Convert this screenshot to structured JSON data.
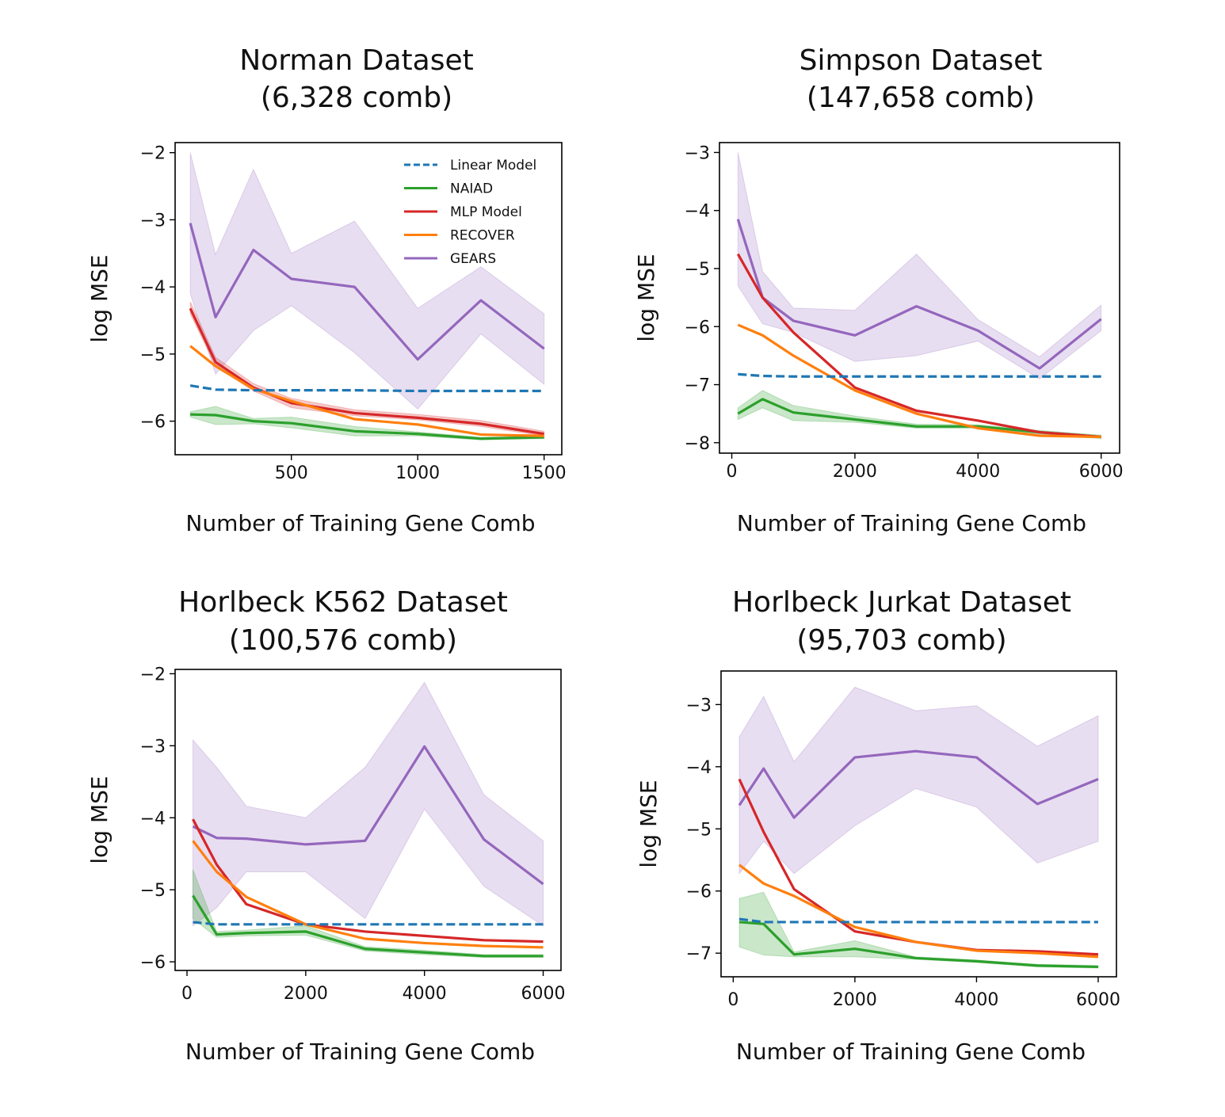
{
  "colors": {
    "linear": "#1f77b4",
    "naiad": "#2ca02c",
    "mlp": "#d62728",
    "recover": "#ff7f0e",
    "gears": "#9467bd"
  },
  "legend": [
    {
      "key": "linear",
      "label": "Linear Model",
      "dashed": true
    },
    {
      "key": "naiad",
      "label": "NAIAD",
      "dashed": false
    },
    {
      "key": "mlp",
      "label": "MLP Model",
      "dashed": false
    },
    {
      "key": "recover",
      "label": "RECOVER",
      "dashed": false
    },
    {
      "key": "gears",
      "label": "GEARS",
      "dashed": false
    }
  ],
  "chart_data": [
    {
      "type": "line",
      "title": [
        "Norman Dataset",
        "(6,328 comb)"
      ],
      "xlabel": "Number of Training Gene Comb",
      "ylabel": "log MSE",
      "xlim": [
        40,
        1570
      ],
      "ylim": [
        -6.5,
        -1.85
      ],
      "xticks": [
        500,
        1000,
        1500
      ],
      "yticks": [
        -6,
        -5,
        -4,
        -3,
        -2
      ],
      "legend": true,
      "x": [
        100,
        200,
        350,
        500,
        750,
        1000,
        1250,
        1500
      ],
      "series": [
        {
          "key": "linear",
          "values": [
            -5.47,
            -5.53,
            -5.54,
            -5.54,
            -5.54,
            -5.55,
            -5.55,
            -5.55
          ],
          "band": null
        },
        {
          "key": "gears",
          "values": [
            -3.05,
            -4.45,
            -3.45,
            -3.88,
            -4.0,
            -5.08,
            -4.2,
            -4.92
          ],
          "band": {
            "lower": [
              -4.1,
              -5.3,
              -4.65,
              -4.28,
              -4.98,
              -5.82,
              -4.7,
              -5.45
            ],
            "upper": [
              -2.0,
              -3.52,
              -2.25,
              -3.5,
              -3.02,
              -4.32,
              -3.7,
              -4.4
            ]
          }
        },
        {
          "key": "naiad",
          "values": [
            -5.9,
            -5.91,
            -6.0,
            -6.03,
            -6.15,
            -6.19,
            -6.26,
            -6.24
          ],
          "band": {
            "lower": [
              -5.94,
              -6.05,
              -6.04,
              -6.1,
              -6.22,
              -6.22,
              -6.28,
              -6.26
            ],
            "upper": [
              -5.86,
              -5.78,
              -5.96,
              -5.94,
              -6.08,
              -6.16,
              -6.24,
              -6.22
            ]
          }
        },
        {
          "key": "mlp",
          "values": [
            -4.32,
            -5.12,
            -5.5,
            -5.73,
            -5.88,
            -5.95,
            -6.04,
            -6.19
          ],
          "band": {
            "lower": [
              -4.4,
              -5.18,
              -5.55,
              -5.8,
              -5.92,
              -5.98,
              -6.08,
              -6.22
            ],
            "upper": [
              -4.22,
              -5.05,
              -5.44,
              -5.66,
              -5.83,
              -5.9,
              -5.99,
              -6.15
            ]
          }
        },
        {
          "key": "recover",
          "values": [
            -4.88,
            -5.18,
            -5.52,
            -5.7,
            -5.97,
            -6.05,
            -6.2,
            -6.22
          ],
          "band": null
        }
      ]
    },
    {
      "type": "line",
      "title": [
        "Simpson Dataset",
        "(147,658 comb)"
      ],
      "xlabel": "Number of Training Gene Comb",
      "ylabel": "log MSE",
      "xlim": [
        -200,
        6300
      ],
      "ylim": [
        -8.18,
        -2.83
      ],
      "xticks": [
        0,
        2000,
        4000,
        6000
      ],
      "yticks": [
        -8,
        -7,
        -6,
        -5,
        -4,
        -3
      ],
      "legend": false,
      "x": [
        100,
        500,
        1000,
        2000,
        3000,
        4000,
        5000,
        6000
      ],
      "series": [
        {
          "key": "linear",
          "values": [
            -6.82,
            -6.85,
            -6.86,
            -6.86,
            -6.86,
            -6.86,
            -6.86,
            -6.86
          ],
          "band": null
        },
        {
          "key": "gears",
          "values": [
            -4.15,
            -5.5,
            -5.9,
            -6.15,
            -5.65,
            -6.07,
            -6.72,
            -5.87
          ],
          "band": {
            "lower": [
              -5.3,
              -5.95,
              -6.1,
              -6.6,
              -6.5,
              -6.25,
              -6.9,
              -6.07
            ],
            "upper": [
              -3.0,
              -5.05,
              -5.68,
              -5.72,
              -4.75,
              -5.88,
              -6.52,
              -5.63
            ]
          }
        },
        {
          "key": "naiad",
          "values": [
            -7.5,
            -7.25,
            -7.48,
            -7.6,
            -7.72,
            -7.72,
            -7.82,
            -7.9
          ],
          "band": {
            "lower": [
              -7.6,
              -7.4,
              -7.62,
              -7.65,
              -7.75,
              -7.75,
              -7.85,
              -7.93
            ],
            "upper": [
              -7.4,
              -7.1,
              -7.36,
              -7.54,
              -7.68,
              -7.69,
              -7.79,
              -7.87
            ]
          }
        },
        {
          "key": "mlp",
          "values": [
            -4.75,
            -5.5,
            -6.1,
            -7.05,
            -7.45,
            -7.62,
            -7.82,
            -7.9
          ],
          "band": null
        },
        {
          "key": "recover",
          "values": [
            -5.97,
            -6.15,
            -6.5,
            -7.1,
            -7.5,
            -7.75,
            -7.88,
            -7.9
          ],
          "band": null
        }
      ]
    },
    {
      "type": "line",
      "title": [
        "Horlbeck K562 Dataset",
        "(100,576 comb)"
      ],
      "xlabel": "Number of Training Gene Comb",
      "ylabel": "log MSE",
      "xlim": [
        -200,
        6300
      ],
      "ylim": [
        -6.12,
        -1.94
      ],
      "xticks": [
        0,
        2000,
        4000,
        6000
      ],
      "yticks": [
        -6,
        -5,
        -4,
        -3,
        -2
      ],
      "legend": false,
      "x": [
        100,
        500,
        1000,
        2000,
        3000,
        4000,
        5000,
        6000
      ],
      "series": [
        {
          "key": "linear",
          "values": [
            -5.45,
            -5.48,
            -5.48,
            -5.48,
            -5.48,
            -5.48,
            -5.48,
            -5.48
          ],
          "band": null
        },
        {
          "key": "gears",
          "values": [
            -4.12,
            -4.28,
            -4.29,
            -4.37,
            -4.32,
            -3.01,
            -4.3,
            -4.92
          ],
          "band": {
            "lower": [
              -5.5,
              -5.25,
              -4.75,
              -4.75,
              -5.4,
              -3.88,
              -4.95,
              -5.5
            ],
            "upper": [
              -2.92,
              -3.3,
              -3.84,
              -4.0,
              -3.3,
              -2.12,
              -3.68,
              -4.32
            ]
          }
        },
        {
          "key": "naiad",
          "values": [
            -5.08,
            -5.62,
            -5.6,
            -5.58,
            -5.82,
            -5.87,
            -5.92,
            -5.92
          ],
          "band": {
            "lower": [
              -5.4,
              -5.66,
              -5.64,
              -5.63,
              -5.85,
              -5.9,
              -5.94,
              -5.94
            ],
            "upper": [
              -4.72,
              -5.58,
              -5.56,
              -5.5,
              -5.79,
              -5.84,
              -5.9,
              -5.9
            ]
          }
        },
        {
          "key": "mlp",
          "values": [
            -4.02,
            -4.65,
            -5.2,
            -5.48,
            -5.58,
            -5.64,
            -5.7,
            -5.72
          ],
          "band": null
        },
        {
          "key": "recover",
          "values": [
            -4.32,
            -4.75,
            -5.1,
            -5.48,
            -5.68,
            -5.74,
            -5.78,
            -5.8
          ],
          "band": null
        }
      ]
    },
    {
      "type": "line",
      "title": [
        "Horlbeck Jurkat Dataset",
        "(95,703 comb)"
      ],
      "xlabel": "Number of Training Gene Comb",
      "ylabel": "log MSE",
      "xlim": [
        -200,
        6300
      ],
      "ylim": [
        -7.38,
        -2.46
      ],
      "xticks": [
        0,
        2000,
        4000,
        6000
      ],
      "yticks": [
        -7,
        -6,
        -5,
        -4,
        -3
      ],
      "legend": false,
      "x": [
        100,
        500,
        1000,
        2000,
        3000,
        4000,
        5000,
        6000
      ],
      "series": [
        {
          "key": "linear",
          "values": [
            -6.45,
            -6.5,
            -6.5,
            -6.5,
            -6.5,
            -6.5,
            -6.5,
            -6.5
          ],
          "band": null
        },
        {
          "key": "gears",
          "values": [
            -4.62,
            -4.03,
            -4.82,
            -3.85,
            -3.75,
            -3.85,
            -4.6,
            -4.2
          ],
          "band": {
            "lower": [
              -5.72,
              -5.2,
              -5.72,
              -4.95,
              -4.35,
              -4.65,
              -5.55,
              -5.2
            ],
            "upper": [
              -3.52,
              -2.87,
              -3.92,
              -2.72,
              -3.1,
              -3.02,
              -3.67,
              -3.18
            ]
          }
        },
        {
          "key": "naiad",
          "values": [
            -6.5,
            -6.53,
            -7.02,
            -6.93,
            -7.08,
            -7.13,
            -7.2,
            -7.22
          ],
          "band": {
            "lower": [
              -6.9,
              -7.03,
              -7.06,
              -7.06,
              -7.1,
              -7.15,
              -7.22,
              -7.24
            ],
            "upper": [
              -6.12,
              -6.02,
              -6.98,
              -6.8,
              -7.06,
              -7.11,
              -7.18,
              -7.2
            ]
          }
        },
        {
          "key": "mlp",
          "values": [
            -4.2,
            -5.05,
            -5.97,
            -6.65,
            -6.82,
            -6.95,
            -6.97,
            -7.02
          ],
          "band": null
        },
        {
          "key": "recover",
          "values": [
            -5.58,
            -5.88,
            -6.08,
            -6.58,
            -6.82,
            -6.96,
            -7.0,
            -7.06
          ],
          "band": null
        }
      ]
    }
  ]
}
